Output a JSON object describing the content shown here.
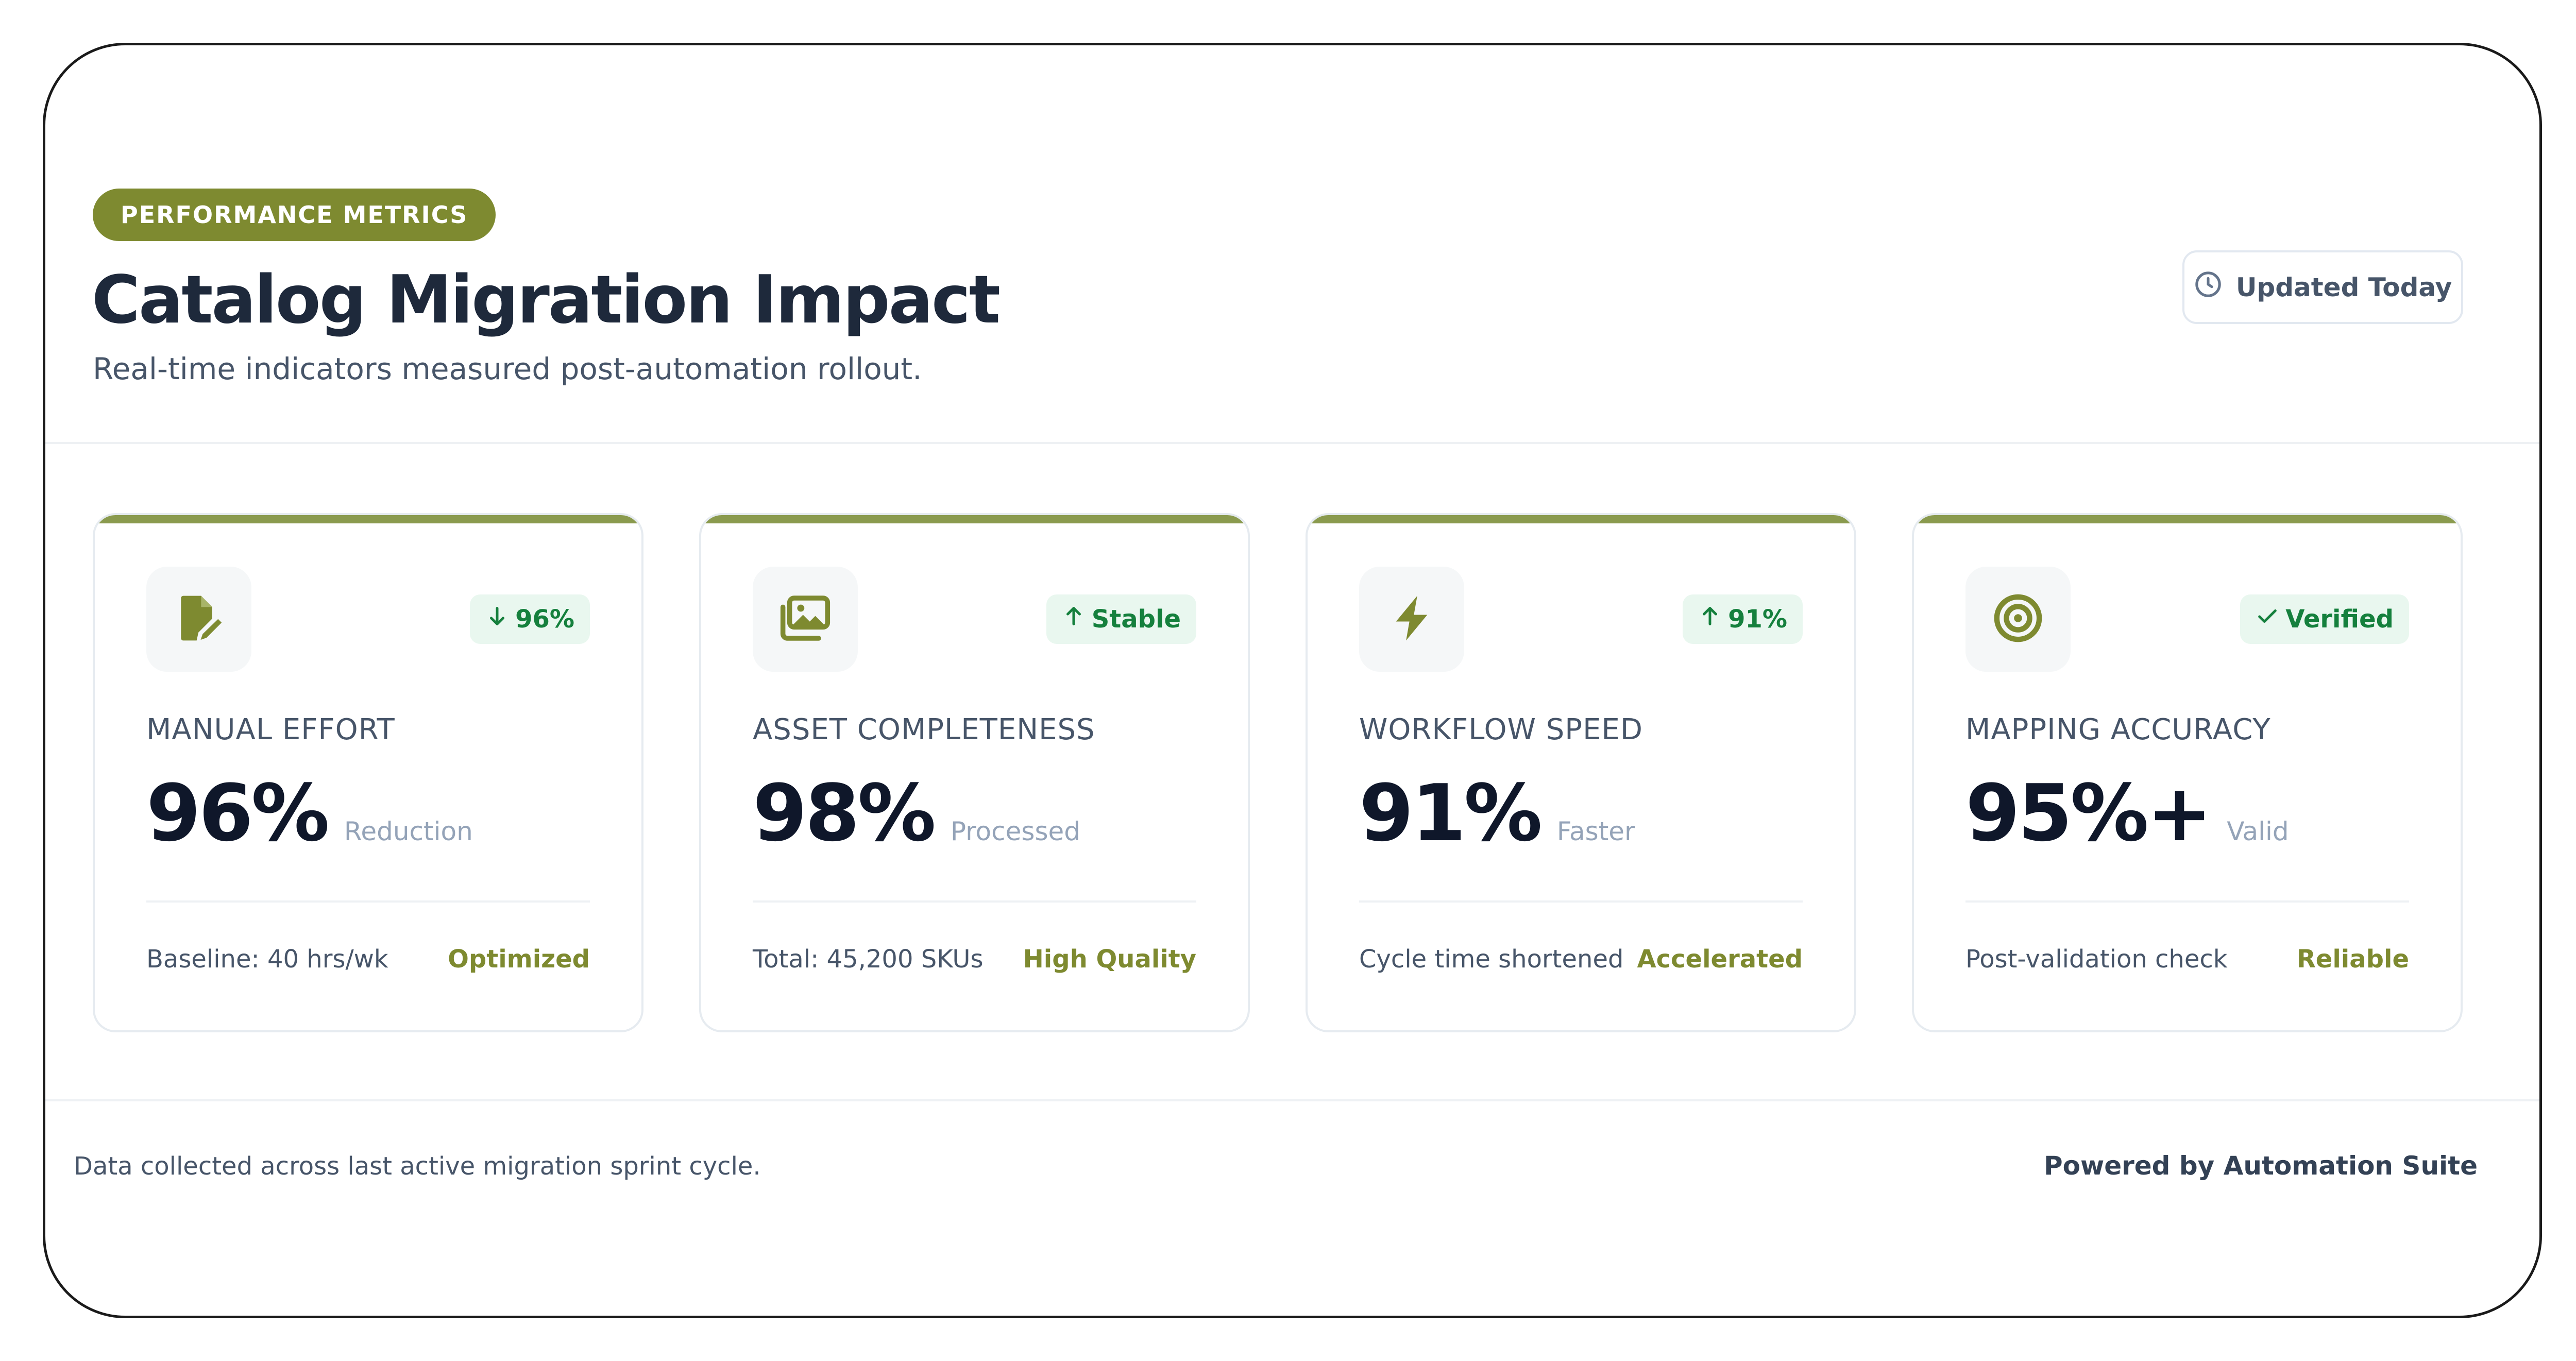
{
  "header": {
    "pill": "PERFORMANCE METRICS",
    "title": "Catalog Migration Impact",
    "subtitle": "Real-time indicators measured post-automation rollout.",
    "updated": "Updated Today",
    "updated_icon": "clock-icon"
  },
  "colors": {
    "accent": "#7e8a30",
    "card_bar": "#8a9a4e",
    "badge_bg": "#e9f7ef",
    "badge_text": "#15803d",
    "value_text": "#0f172a"
  },
  "cards": [
    {
      "icon": "file-edit-icon",
      "badge_icon": "arrow-down-icon",
      "badge": "96%",
      "label": "MANUAL EFFORT",
      "value": "96%",
      "unit": "Reduction",
      "foot_left": "Baseline: 40 hrs/wk",
      "foot_right": "Optimized"
    },
    {
      "icon": "images-icon",
      "badge_icon": "arrow-up-icon",
      "badge": "Stable",
      "label": "ASSET COMPLETENESS",
      "value": "98%",
      "unit": "Processed",
      "foot_left": "Total: 45,200 SKUs",
      "foot_right": "High Quality"
    },
    {
      "icon": "bolt-icon",
      "badge_icon": "arrow-up-icon",
      "badge": "91%",
      "label": "WORKFLOW SPEED",
      "value": "91%",
      "unit": "Faster",
      "foot_left": "Cycle time shortened",
      "foot_right": "Accelerated"
    },
    {
      "icon": "target-icon",
      "badge_icon": "check-icon",
      "badge": "Verified",
      "label": "MAPPING ACCURACY",
      "value": "95%+",
      "unit": "Valid",
      "foot_left": "Post-validation check",
      "foot_right": "Reliable"
    }
  ],
  "footer": {
    "note": "Data collected across last active migration sprint cycle.",
    "powered": "Powered by Automation Suite"
  }
}
